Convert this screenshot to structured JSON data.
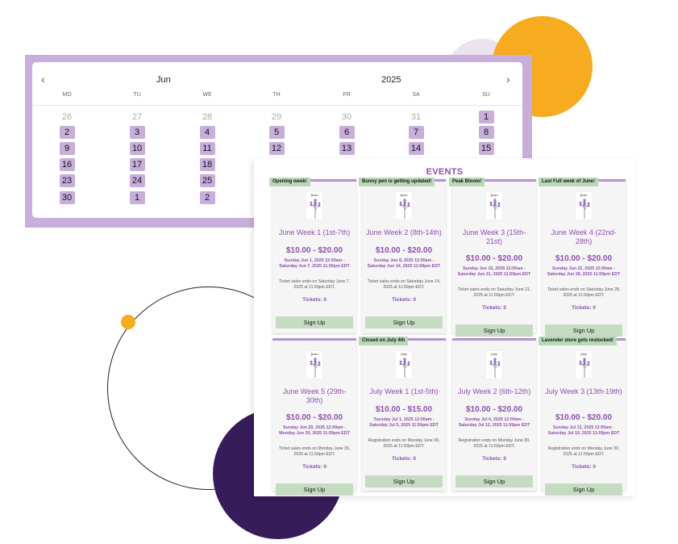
{
  "calendar": {
    "month": "Jun",
    "year": "2025",
    "prev_icon": "chevron-left-icon",
    "next_icon": "chevron-right-icon",
    "dows": [
      "MO",
      "TU",
      "WE",
      "TH",
      "FR",
      "SA",
      "SU"
    ],
    "weeks": [
      [
        "26",
        "27",
        "28",
        "29",
        "30",
        "31",
        "1"
      ],
      [
        "2",
        "3",
        "4",
        "5",
        "6",
        "7",
        "8"
      ],
      [
        "9",
        "10",
        "11",
        "12",
        "13",
        "14",
        "15"
      ],
      [
        "16",
        "17",
        "18",
        "",
        "",
        "",
        ""
      ],
      [
        "23",
        "24",
        "25",
        "",
        "",
        "",
        ""
      ],
      [
        "30",
        "1",
        "2",
        "",
        "",
        "",
        ""
      ]
    ],
    "highlight_color": "#c7aedb"
  },
  "events": {
    "title": "EVENTS",
    "cards": [
      {
        "ribbon": "Opening week!",
        "thumb": "June",
        "title": "June Week 1 (1st-7th)",
        "price": "$10.00 - $20.00",
        "dates": "Sunday Jun 1, 2025 12:00am - Saturday Jun 7, 2025 11:59pm EDT",
        "note": "Ticket sales ends on Saturday June 7, 2025 at 11:59pm EDT.",
        "tickets": "Tickets: 0",
        "button": "Sign Up"
      },
      {
        "ribbon": "Bunny pen is getting updated!",
        "thumb": "June",
        "title": "June Week 2 (8th-14th)",
        "price": "$10.00 - $20.00",
        "dates": "Sunday Jun 8, 2025 12:00am - Saturday Jun 14, 2025 11:59pm EDT",
        "note": "Ticket sales ends on Saturday June 14, 2025 at 11:59pm EDT.",
        "tickets": "Tickets: 0",
        "button": "Sign Up"
      },
      {
        "ribbon": "Peak Bloom!",
        "thumb": "June",
        "title": "June Week 3 (15th-21st)",
        "price": "$10.00 - $20.00",
        "dates": "Sunday Jun 15, 2025 12:00am - Saturday Jun 21, 2025 11:59pm EDT",
        "note": "Ticket sales ends on Saturday June 21, 2025 at 11:59pm EDT.",
        "tickets": "Tickets: 0",
        "button": "Sign Up"
      },
      {
        "ribbon": "Last Full week of June!",
        "thumb": "June",
        "title": "June Week 4 (22nd-28th)",
        "price": "$10.00 - $20.00",
        "dates": "Sunday Jun 22, 2025 12:00am - Saturday Jun 28, 2025 11:59pm EDT",
        "note": "Ticket sales ends on Saturday June 28, 2025 at 11:59pm EDT.",
        "tickets": "Tickets: 0",
        "button": "Sign Up"
      },
      {
        "ribbon": "",
        "thumb": "June",
        "title": "June Week 5 (29th-30th)",
        "price": "$10.00 - $20.00",
        "dates": "Sunday Jun 29, 2025 12:00am - Monday Jun 30, 2025 11:59pm EDT",
        "note": "Ticket sales ends on Monday June 30, 2025 at 11:59pm EDT.",
        "tickets": "Tickets: 0",
        "button": "Sign Up"
      },
      {
        "ribbon": "Closed on July 4th",
        "thumb": "July",
        "title": "July Week 1 (1st-5th)",
        "price": "$10.00 - $15.00",
        "dates": "Tuesday Jul 1, 2025 12:00am - Saturday Jul 5, 2025 11:59pm EDT",
        "note": "Registration ends on Monday June 30, 2025 at 11:59pm EDT.",
        "tickets": "Tickets: 0",
        "button": "Sign Up"
      },
      {
        "ribbon": "",
        "thumb": "July",
        "title": "July Week 2 (6th-12th)",
        "price": "$10.00 - $20.00",
        "dates": "Sunday Jul 6, 2025 12:00am - Saturday Jul 12, 2025 11:59pm EDT",
        "note": "Registration ends on Monday June 30, 2025 at 11:59pm EDT.",
        "tickets": "Tickets: 0",
        "button": "Sign Up"
      },
      {
        "ribbon": "Lavender store gets restocked!",
        "thumb": "July",
        "title": "July Week 3 (13th-19th)",
        "price": "$10.00 - $20.00",
        "dates": "Sunday Jul 13, 2025 12:00am - Saturday Jul 19, 2025 11:59pm EDT",
        "note": "Registration ends on Monday June 30, 2025 at 11:59pm EDT.",
        "tickets": "Tickets: 0",
        "button": "Sign Up"
      }
    ]
  }
}
